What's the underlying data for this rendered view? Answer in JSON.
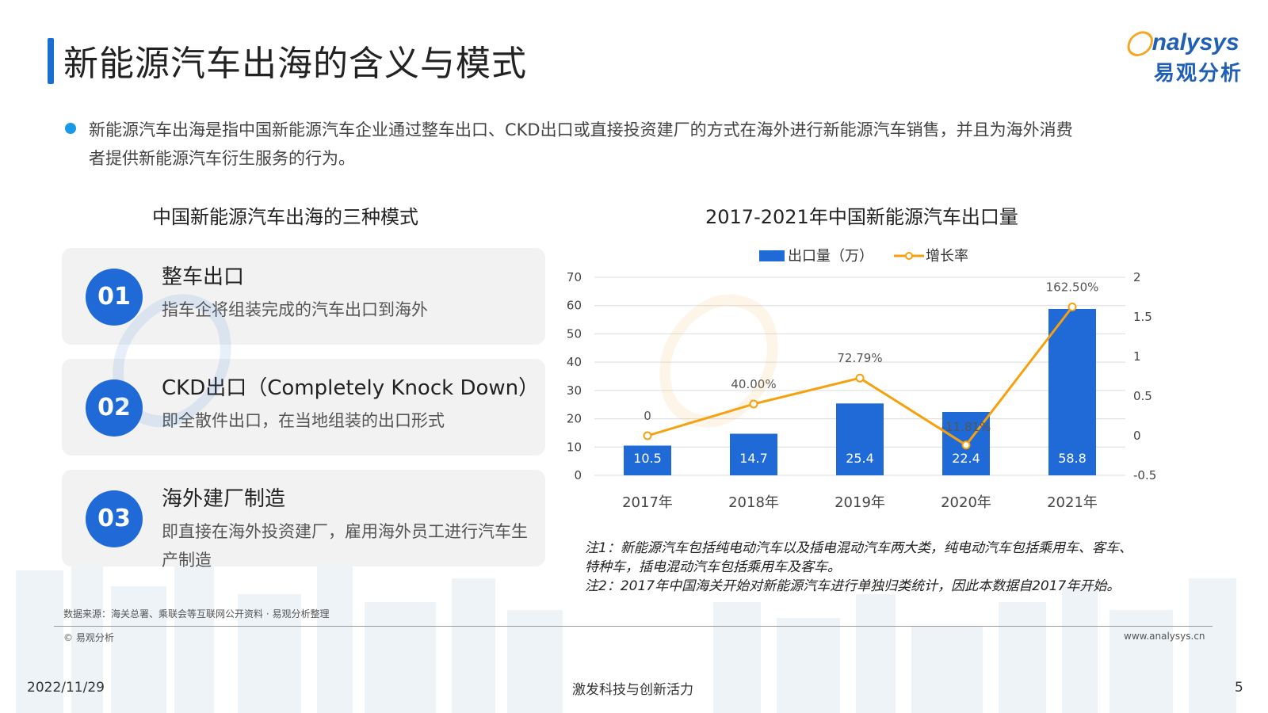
{
  "page": {
    "title": "新能源汽车出海的含义与模式",
    "logo_en": "analysys",
    "logo_en_rest": "nalysys",
    "logo_cn": "易观分析",
    "intro_line1": "新能源汽车出海是指中国新能源汽车企业通过整车出口、CKD出口或直接投资建厂的方式在海外进行新能源汽车销售，并且为海外消费",
    "intro_line2": "者提供新能源汽车衍生服务的行为。"
  },
  "left": {
    "section_title": "中国新能源汽车出海的三种模式",
    "cards": [
      {
        "num": "01",
        "title": "整车出口",
        "desc": "指车企将组装完成的汽车出口到海外"
      },
      {
        "num": "02",
        "title": "CKD出口（Completely Knock Down）",
        "desc": "即全散件出口，在当地组装的出口形式"
      },
      {
        "num": "03",
        "title": "海外建厂制造",
        "desc": "即直接在海外投资建厂，雇用海外员工进行汽车生产制造"
      }
    ]
  },
  "chart_data": {
    "type": "bar",
    "title": "2017-2021年中国新能源汽车出口量",
    "categories": [
      "2017年",
      "2018年",
      "2019年",
      "2020年",
      "2021年"
    ],
    "series": [
      {
        "name": "出口量（万）",
        "type": "bar",
        "axis": "left",
        "values": [
          10.5,
          14.7,
          25.4,
          22.4,
          58.8
        ],
        "labels": [
          "10.5",
          "14.7",
          "25.4",
          "22.4",
          "58.8"
        ],
        "color": "#1f6ad6"
      },
      {
        "name": "增长率",
        "type": "line",
        "axis": "right",
        "values": [
          0,
          0.4,
          0.7279,
          -0.1181,
          1.625
        ],
        "labels": [
          "0",
          "40.00%",
          "72.79%",
          "-11.81%",
          "162.50%"
        ],
        "color": "#f5a10f"
      }
    ],
    "y_left": {
      "min": 0,
      "max": 70,
      "ticks": [
        "0",
        "10",
        "20",
        "30",
        "40",
        "50",
        "60",
        "70"
      ]
    },
    "y_right": {
      "min": -0.5,
      "max": 2,
      "ticks": [
        "-0.5",
        "0",
        "0.5",
        "1",
        "1.5",
        "2"
      ]
    },
    "grid": true,
    "legend": "top-center"
  },
  "notes": {
    "note1_line1": "注1：新能源汽车包括纯电动汽车以及插电混动汽车两大类，纯电动汽车包括乘用车、客车、",
    "note1_line2": "特种车，插电混动汽车包括乘用车及客车。",
    "note2": "注2：2017年中国海关开始对新能源汽车进行单独归类统计，因此本数据自2017年开始。"
  },
  "footer": {
    "source": "数据来源：海关总署、乘联会等互联网公开资料 · 易观分析整理",
    "copyright": "© 易观分析",
    "website": "www.analysys.cn",
    "date": "2022/11/29",
    "slogan": "激发科技与创新活力",
    "page_number": "5"
  },
  "colors": {
    "accent_blue": "#1f6ad6",
    "line_orange": "#f5a10f",
    "card_bg": "#f2f2f2"
  }
}
